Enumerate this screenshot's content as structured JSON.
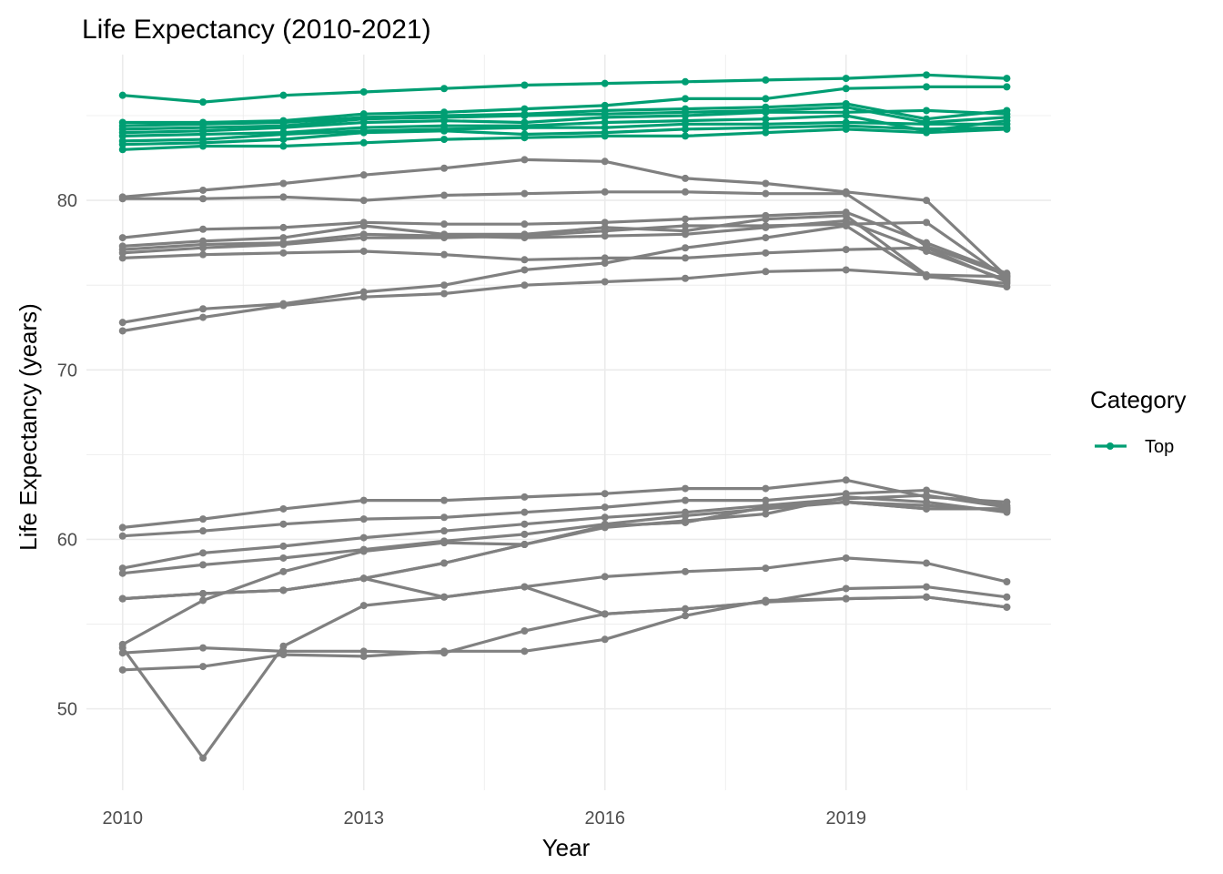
{
  "chart_data": {
    "type": "line",
    "title": "Life Expectancy (2010-2021)",
    "xlabel": "Year",
    "ylabel": "Life Expectancy (years)",
    "xlim": [
      2009.55,
      2021.55
    ],
    "ylim": [
      45.2,
      88.6
    ],
    "x_ticks": [
      2010,
      2013,
      2016,
      2019
    ],
    "y_ticks": [
      50,
      60,
      70,
      80
    ],
    "grid": true,
    "legend": {
      "title": "Category",
      "position": "right",
      "entries": [
        {
          "label": "Top",
          "color": "#009E73"
        }
      ]
    },
    "colors": {
      "Top": "#009E73",
      "other": "#808080"
    },
    "x": [
      2010,
      2011,
      2012,
      2013,
      2014,
      2015,
      2016,
      2017,
      2018,
      2019,
      2020,
      2021
    ],
    "series": [
      {
        "category": "Top",
        "values": [
          86.2,
          85.8,
          86.2,
          86.4,
          86.6,
          86.8,
          86.9,
          87.0,
          87.1,
          87.2,
          87.4,
          87.2
        ]
      },
      {
        "category": "Top",
        "values": [
          84.6,
          84.6,
          84.7,
          85.1,
          85.2,
          85.4,
          85.6,
          86.0,
          86.0,
          86.6,
          86.7,
          86.7
        ]
      },
      {
        "category": "Top",
        "values": [
          84.4,
          84.5,
          84.6,
          84.9,
          85.0,
          85.1,
          85.3,
          85.4,
          85.5,
          85.7,
          84.8,
          85.3
        ]
      },
      {
        "category": "Top",
        "values": [
          84.2,
          84.3,
          84.4,
          84.8,
          84.9,
          85.0,
          85.1,
          85.2,
          85.3,
          85.5,
          84.6,
          84.9
        ]
      },
      {
        "category": "Top",
        "values": [
          84.0,
          84.1,
          84.3,
          84.6,
          84.7,
          84.6,
          84.9,
          85.0,
          85.2,
          85.2,
          85.3,
          85.1
        ]
      },
      {
        "category": "Top",
        "values": [
          83.8,
          83.9,
          84.0,
          84.3,
          84.4,
          84.4,
          84.6,
          84.7,
          84.8,
          85.0,
          84.1,
          84.7
        ]
      },
      {
        "category": "Top",
        "values": [
          83.5,
          83.6,
          83.9,
          84.1,
          84.2,
          84.3,
          84.3,
          84.5,
          84.5,
          84.6,
          84.5,
          84.5
        ]
      },
      {
        "category": "Top",
        "values": [
          83.3,
          83.4,
          83.6,
          84.0,
          84.1,
          83.9,
          84.0,
          84.2,
          84.3,
          84.4,
          84.2,
          84.3
        ]
      },
      {
        "category": "Top",
        "values": [
          83.0,
          83.2,
          83.2,
          83.4,
          83.6,
          83.7,
          83.8,
          83.8,
          84.0,
          84.2,
          84.0,
          84.2
        ]
      },
      {
        "category": "other",
        "values": [
          80.2,
          80.6,
          81.0,
          81.5,
          81.9,
          82.4,
          82.3,
          81.3,
          81.0,
          80.5,
          80.0,
          75.5
        ]
      },
      {
        "category": "other",
        "values": [
          80.1,
          80.1,
          80.2,
          80.0,
          80.3,
          80.4,
          80.5,
          80.5,
          80.4,
          80.4,
          77.3,
          75.6
        ]
      },
      {
        "category": "other",
        "values": [
          77.8,
          78.3,
          78.4,
          78.7,
          78.6,
          78.6,
          78.7,
          78.9,
          79.1,
          79.3,
          77.5,
          75.7
        ]
      },
      {
        "category": "other",
        "values": [
          77.3,
          77.6,
          77.8,
          78.5,
          78.0,
          78.0,
          78.4,
          78.2,
          78.9,
          79.1,
          75.6,
          75.5
        ]
      },
      {
        "category": "other",
        "values": [
          77.1,
          77.4,
          77.5,
          78.0,
          77.9,
          77.8,
          77.9,
          78.0,
          78.4,
          78.8,
          77.0,
          75.3
        ]
      },
      {
        "category": "other",
        "values": [
          76.9,
          77.2,
          77.4,
          77.8,
          77.8,
          77.9,
          78.2,
          78.5,
          78.5,
          78.6,
          78.7,
          75.4
        ]
      },
      {
        "category": "other",
        "values": [
          76.6,
          76.8,
          76.9,
          77.0,
          76.8,
          76.5,
          76.6,
          76.6,
          76.9,
          77.1,
          77.2,
          75.2
        ]
      },
      {
        "category": "other",
        "values": [
          72.8,
          73.6,
          73.9,
          74.6,
          75.0,
          75.9,
          76.3,
          77.2,
          77.8,
          78.5,
          75.5,
          75.1
        ]
      },
      {
        "category": "other",
        "values": [
          72.3,
          73.1,
          73.8,
          74.3,
          74.5,
          75.0,
          75.2,
          75.4,
          75.8,
          75.9,
          75.6,
          74.9
        ]
      },
      {
        "category": "other",
        "values": [
          60.7,
          61.2,
          61.8,
          62.3,
          62.3,
          62.5,
          62.7,
          63.0,
          63.0,
          63.5,
          62.5,
          62.2
        ]
      },
      {
        "category": "other",
        "values": [
          60.2,
          60.5,
          60.9,
          61.2,
          61.3,
          61.6,
          61.9,
          62.3,
          62.3,
          62.7,
          62.9,
          62.0
        ]
      },
      {
        "category": "other",
        "values": [
          58.3,
          59.2,
          59.6,
          60.1,
          60.5,
          60.9,
          61.3,
          61.6,
          62.0,
          62.4,
          62.6,
          61.9
        ]
      },
      {
        "category": "other",
        "values": [
          58.0,
          58.5,
          58.9,
          59.4,
          59.9,
          60.3,
          60.9,
          61.4,
          61.8,
          62.2,
          62.0,
          61.7
        ]
      },
      {
        "category": "other",
        "values": [
          53.8,
          56.4,
          58.1,
          59.3,
          59.8,
          59.7,
          60.7,
          61.1,
          61.5,
          62.5,
          62.2,
          61.6
        ]
      },
      {
        "category": "other",
        "values": [
          56.5,
          56.8,
          57.0,
          57.7,
          58.6,
          59.7,
          60.8,
          61.0,
          61.9,
          62.2,
          61.8,
          61.8
        ]
      },
      {
        "category": "other",
        "values": [
          56.5,
          56.8,
          57.0,
          57.7,
          58.6,
          59.7,
          60.8,
          61.0,
          61.9,
          62.2,
          61.8,
          61.8
        ]
      },
      {
        "category": "other",
        "values": [
          56.5,
          56.8,
          57.0,
          57.7,
          56.6,
          57.2,
          57.8,
          58.1,
          58.3,
          58.9,
          58.6,
          57.5
        ]
      },
      {
        "category": "other",
        "values": [
          53.6,
          47.1,
          53.7,
          56.1,
          56.6,
          57.2,
          55.6,
          55.9,
          56.3,
          57.1,
          57.2,
          56.6
        ]
      },
      {
        "category": "other",
        "values": [
          53.3,
          53.6,
          53.4,
          53.4,
          53.3,
          54.6,
          55.6,
          55.9,
          56.3,
          56.5,
          56.6,
          56.0
        ]
      },
      {
        "category": "other",
        "values": [
          52.3,
          52.5,
          53.2,
          53.1,
          53.4,
          53.4,
          54.1,
          55.5,
          56.4,
          56.5,
          56.6,
          56.0
        ]
      }
    ]
  }
}
